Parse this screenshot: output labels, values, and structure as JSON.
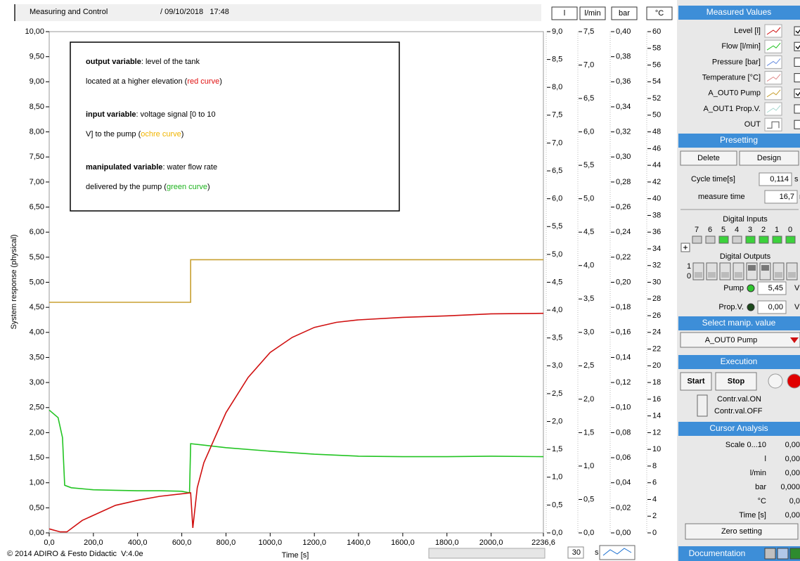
{
  "header": {
    "title": "Measuring and Control",
    "datetime": "/ 09/10/2018   17:48"
  },
  "chart_data": {
    "type": "line",
    "ylabel": "System response (physical)",
    "xlabel": "Time [s]",
    "xlim": [
      0,
      2236.6
    ],
    "xticks": [
      {
        "value": 0,
        "label": "0,0"
      },
      {
        "value": 200,
        "label": "200,0"
      },
      {
        "value": 400,
        "label": "400,0"
      },
      {
        "value": 600,
        "label": "600,0"
      },
      {
        "value": 800,
        "label": "800,0"
      },
      {
        "value": 1000,
        "label": "1000,0"
      },
      {
        "value": 1200,
        "label": "1200,0"
      },
      {
        "value": 1400,
        "label": "1400,0"
      },
      {
        "value": 1600,
        "label": "1600,0"
      },
      {
        "value": 1800,
        "label": "1800,0"
      },
      {
        "value": 2000,
        "label": "2000,0"
      },
      {
        "value": 2236.6,
        "label": "2236,6"
      }
    ],
    "ylim": [
      0,
      10
    ],
    "yticks": [
      {
        "value": 0,
        "label": "0,00"
      },
      {
        "value": 0.5,
        "label": "0,50"
      },
      {
        "value": 1,
        "label": "1,00"
      },
      {
        "value": 1.5,
        "label": "1,50"
      },
      {
        "value": 2,
        "label": "2,00"
      },
      {
        "value": 2.5,
        "label": "2,50"
      },
      {
        "value": 3,
        "label": "3,00"
      },
      {
        "value": 3.5,
        "label": "3,50"
      },
      {
        "value": 4,
        "label": "4,00"
      },
      {
        "value": 4.5,
        "label": "4,50"
      },
      {
        "value": 5,
        "label": "5,00"
      },
      {
        "value": 5.5,
        "label": "5,50"
      },
      {
        "value": 6,
        "label": "6,00"
      },
      {
        "value": 6.5,
        "label": "6,50"
      },
      {
        "value": 7,
        "label": "7,00"
      },
      {
        "value": 7.5,
        "label": "7,50"
      },
      {
        "value": 8,
        "label": "8,00"
      },
      {
        "value": 8.5,
        "label": "8,50"
      },
      {
        "value": 9,
        "label": "9,00"
      },
      {
        "value": 9.5,
        "label": "9,50"
      },
      {
        "value": 10,
        "label": "10,00"
      }
    ],
    "series": [
      {
        "name": "Level [l]",
        "color": "#d01010",
        "x": [
          0,
          50,
          80,
          150,
          200,
          300,
          400,
          500,
          600,
          640,
          650,
          670,
          700,
          750,
          800,
          900,
          1000,
          1100,
          1200,
          1300,
          1400,
          1600,
          1800,
          2000,
          2236.6
        ],
        "values": [
          0.08,
          0.02,
          0.02,
          0.25,
          0.35,
          0.55,
          0.65,
          0.73,
          0.78,
          0.8,
          0.1,
          0.9,
          1.4,
          1.9,
          2.4,
          3.1,
          3.6,
          3.9,
          4.1,
          4.2,
          4.25,
          4.3,
          4.33,
          4.37,
          4.38
        ]
      },
      {
        "name": "Flow [l/min]",
        "color": "#22c422",
        "x": [
          0,
          40,
          60,
          70,
          100,
          200,
          300,
          400,
          500,
          600,
          635,
          640,
          700,
          800,
          1000,
          1200,
          1400,
          1600,
          1800,
          2000,
          2236.6
        ],
        "values": [
          2.45,
          2.3,
          1.9,
          0.95,
          0.9,
          0.86,
          0.85,
          0.84,
          0.84,
          0.83,
          0.8,
          1.78,
          1.75,
          1.7,
          1.63,
          1.57,
          1.53,
          1.52,
          1.52,
          1.53,
          1.52
        ]
      },
      {
        "name": "A_OUT0 Pump",
        "color": "#c8a030",
        "x": [
          0,
          640,
          640,
          2236.6
        ],
        "values": [
          4.6,
          4.6,
          5.45,
          5.45
        ]
      }
    ],
    "y_axes": [
      {
        "unit": "l",
        "ylim": [
          0,
          9
        ],
        "yticks": [
          {
            "value": 0,
            "label": "0,0"
          },
          {
            "value": 0.5,
            "label": "0,5"
          },
          {
            "value": 1,
            "label": "1,0"
          },
          {
            "value": 1.5,
            "label": "1,5"
          },
          {
            "value": 2,
            "label": "2,0"
          },
          {
            "value": 2.5,
            "label": "2,5"
          },
          {
            "value": 3,
            "label": "3,0"
          },
          {
            "value": 3.5,
            "label": "3,5"
          },
          {
            "value": 4,
            "label": "4,0"
          },
          {
            "value": 4.5,
            "label": "4,5"
          },
          {
            "value": 5,
            "label": "5,0"
          },
          {
            "value": 5.5,
            "label": "5,5"
          },
          {
            "value": 6,
            "label": "6,0"
          },
          {
            "value": 6.5,
            "label": "6,5"
          },
          {
            "value": 7,
            "label": "7,0"
          },
          {
            "value": 7.5,
            "label": "7,5"
          },
          {
            "value": 8,
            "label": "8,0"
          },
          {
            "value": 8.5,
            "label": "8,5"
          },
          {
            "value": 9,
            "label": "9,0"
          }
        ]
      },
      {
        "unit": "l/min",
        "ylim": [
          0,
          7.5
        ],
        "yticks": [
          {
            "value": 0,
            "label": "0,0"
          },
          {
            "value": 0.5,
            "label": "0,5"
          },
          {
            "value": 1,
            "label": "1,0"
          },
          {
            "value": 1.5,
            "label": "1,5"
          },
          {
            "value": 2,
            "label": "2,0"
          },
          {
            "value": 2.5,
            "label": "2,5"
          },
          {
            "value": 3,
            "label": "3,0"
          },
          {
            "value": 3.5,
            "label": "3,5"
          },
          {
            "value": 4,
            "label": "4,0"
          },
          {
            "value": 4.5,
            "label": "4,5"
          },
          {
            "value": 5,
            "label": "5,0"
          },
          {
            "value": 5.5,
            "label": "5,5"
          },
          {
            "value": 6,
            "label": "6,0"
          },
          {
            "value": 6.5,
            "label": "6,5"
          },
          {
            "value": 7,
            "label": "7,0"
          },
          {
            "value": 7.5,
            "label": "7,5"
          }
        ]
      },
      {
        "unit": "bar",
        "ylim": [
          0,
          0.4
        ],
        "yticks": [
          {
            "value": 0,
            "label": "0,00"
          },
          {
            "value": 0.02,
            "label": "0,02"
          },
          {
            "value": 0.04,
            "label": "0,04"
          },
          {
            "value": 0.06,
            "label": "0,06"
          },
          {
            "value": 0.08,
            "label": "0,08"
          },
          {
            "value": 0.1,
            "label": "0,10"
          },
          {
            "value": 0.12,
            "label": "0,12"
          },
          {
            "value": 0.14,
            "label": "0,14"
          },
          {
            "value": 0.16,
            "label": "0,16"
          },
          {
            "value": 0.18,
            "label": "0,18"
          },
          {
            "value": 0.2,
            "label": "0,20"
          },
          {
            "value": 0.22,
            "label": "0,22"
          },
          {
            "value": 0.24,
            "label": "0,24"
          },
          {
            "value": 0.26,
            "label": "0,26"
          },
          {
            "value": 0.28,
            "label": "0,28"
          },
          {
            "value": 0.3,
            "label": "0,30"
          },
          {
            "value": 0.32,
            "label": "0,32"
          },
          {
            "value": 0.34,
            "label": "0,34"
          },
          {
            "value": 0.36,
            "label": "0,36"
          },
          {
            "value": 0.38,
            "label": "0,38"
          },
          {
            "value": 0.4,
            "label": "0,40"
          }
        ]
      },
      {
        "unit": "°C",
        "ylim": [
          0,
          60
        ],
        "yticks": [
          0,
          2,
          4,
          6,
          8,
          10,
          12,
          14,
          16,
          18,
          20,
          22,
          24,
          26,
          28,
          30,
          32,
          34,
          36,
          38,
          40,
          42,
          44,
          46,
          48,
          50,
          52,
          54,
          56,
          58,
          60
        ]
      }
    ]
  },
  "annotation": [
    [
      [
        {
          "text": "output variable",
          "bold": true
        },
        {
          "text": ": level of the tank"
        }
      ],
      [
        {
          "text": "located at a higher elevation ("
        },
        {
          "text": "red curve",
          "color": "#e01010"
        },
        {
          "text": ")"
        }
      ]
    ],
    [
      [
        {
          "text": "input variable",
          "bold": true
        },
        {
          "text": ": voltage signal [0 to 10"
        }
      ],
      [
        {
          "text": "V] to the pump ("
        },
        {
          "text": "ochre curve",
          "color": "#f0b400"
        },
        {
          "text": ")"
        }
      ]
    ],
    [
      [
        {
          "text": "manipulated variable",
          "bold": true
        },
        {
          "text": ": water flow rate"
        }
      ],
      [
        {
          "text": "delivered by the pump ("
        },
        {
          "text": "green curve",
          "color": "#1db31d"
        },
        {
          "text": ")"
        }
      ]
    ]
  ],
  "panel": {
    "measured_values": {
      "title": "Measured Values",
      "rows": [
        {
          "label": "Level [l]",
          "color": "#d01010",
          "checked": true
        },
        {
          "label": "Flow [l/min]",
          "color": "#22c422",
          "checked": true
        },
        {
          "label": "Pressure [bar]",
          "color": "#6a8fe0",
          "checked": false
        },
        {
          "label": "Temperature [°C]",
          "color": "#e08a8a",
          "checked": false
        },
        {
          "label": "A_OUT0 Pump",
          "color": "#c8a030",
          "checked": true
        },
        {
          "label": "A_OUT1 Prop.V.",
          "color": "#a8d8d0",
          "checked": false
        },
        {
          "label": "OUT",
          "color": "#555555",
          "checked": false
        }
      ]
    },
    "presetting": {
      "title": "Presetting",
      "buttons": [
        "Delete",
        "Design"
      ],
      "cycle_label": "Cycle time[s]",
      "cycle_value": "0,114",
      "cycle_unit": "s",
      "measure_label": "measure time",
      "measure_value": "16,7",
      "measure_unit": "min"
    },
    "digital_inputs": {
      "title": "Digital Inputs",
      "bits": [
        7,
        6,
        5,
        4,
        3,
        2,
        1,
        0
      ],
      "states": [
        false,
        false,
        true,
        false,
        true,
        true,
        true,
        true
      ]
    },
    "digital_outputs": {
      "title": "Digital Outputs",
      "levels": [
        1,
        0
      ],
      "states": [
        false,
        false,
        false,
        false,
        true,
        true,
        false,
        false
      ]
    },
    "analog": [
      {
        "label": "Pump",
        "value": "5,45",
        "unit": "V",
        "led": "#2ec62e"
      },
      {
        "label": "Prop.V.",
        "value": "0,00",
        "unit": "V",
        "led": "#1c4a1c"
      }
    ],
    "select": {
      "title": "Select manip. value",
      "value": "A_OUT0 Pump"
    },
    "execution": {
      "title": "Execution",
      "start": "Start",
      "stop": "Stop",
      "on": "Contr.val.ON",
      "off": "Contr.val.OFF"
    },
    "cursor": {
      "title": "Cursor Analysis",
      "rows": [
        [
          "Scale 0...10",
          "0,00"
        ],
        [
          "l",
          "0,00"
        ],
        [
          "l/min",
          "0,00"
        ],
        [
          "bar",
          "0,000"
        ],
        [
          "°C",
          "0,0"
        ],
        [
          "Time [s]",
          "0,00"
        ]
      ]
    },
    "zero": "Zero setting",
    "documentation": "Documentation"
  },
  "footer": {
    "copyright": "© 2014 ADIRO & Festo Didactic  V:4.0e",
    "window": "30",
    "window_unit": "s"
  }
}
